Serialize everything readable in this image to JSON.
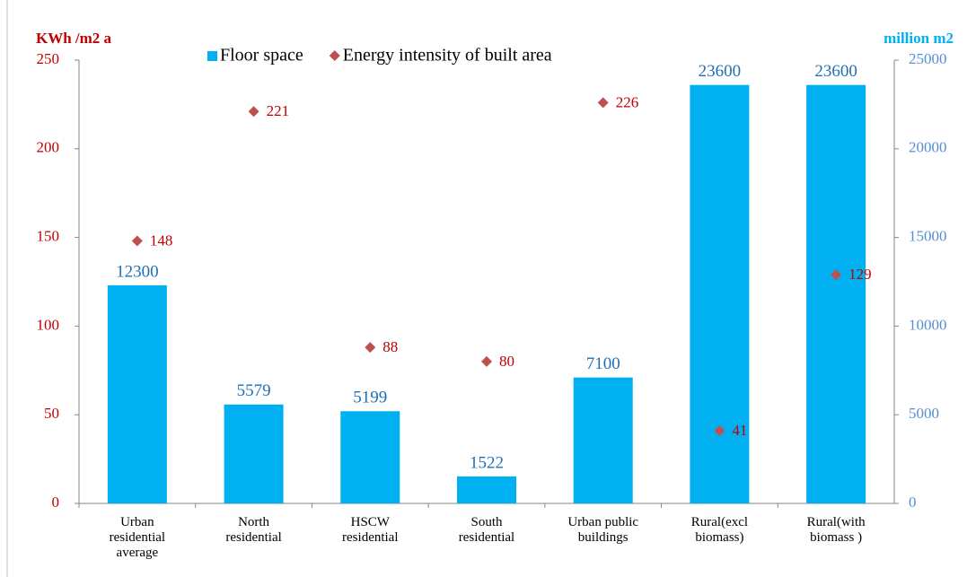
{
  "chart_data": {
    "type": "bar",
    "ylabel": "KWh /m2 a",
    "y2label": "million m2",
    "categories": [
      "Urban\nresidential\naverage",
      "North\nresidential",
      "HSCW\nresidential",
      "South\nresidential",
      "Urban public\nbuildings",
      "Rural(excl\nbiomass)",
      "Rural(with\nbiomass )"
    ],
    "series": [
      {
        "name": "Floor space",
        "type": "bar",
        "axis": "y2",
        "color": "#00b0f0",
        "values": [
          12300,
          5579,
          5199,
          1522,
          7100,
          23600,
          23600
        ]
      },
      {
        "name": "Energy intensity of built area",
        "type": "scatter",
        "axis": "y",
        "color": "#c0504d",
        "values": [
          148,
          221,
          88,
          80,
          226,
          41,
          129
        ]
      }
    ],
    "ylim": [
      0,
      250
    ],
    "yticks": [
      0,
      50,
      100,
      150,
      200,
      250
    ],
    "y2lim": [
      0,
      25000
    ],
    "y2ticks": [
      0,
      5000,
      10000,
      15000,
      20000,
      25000
    ],
    "legend": "top"
  }
}
